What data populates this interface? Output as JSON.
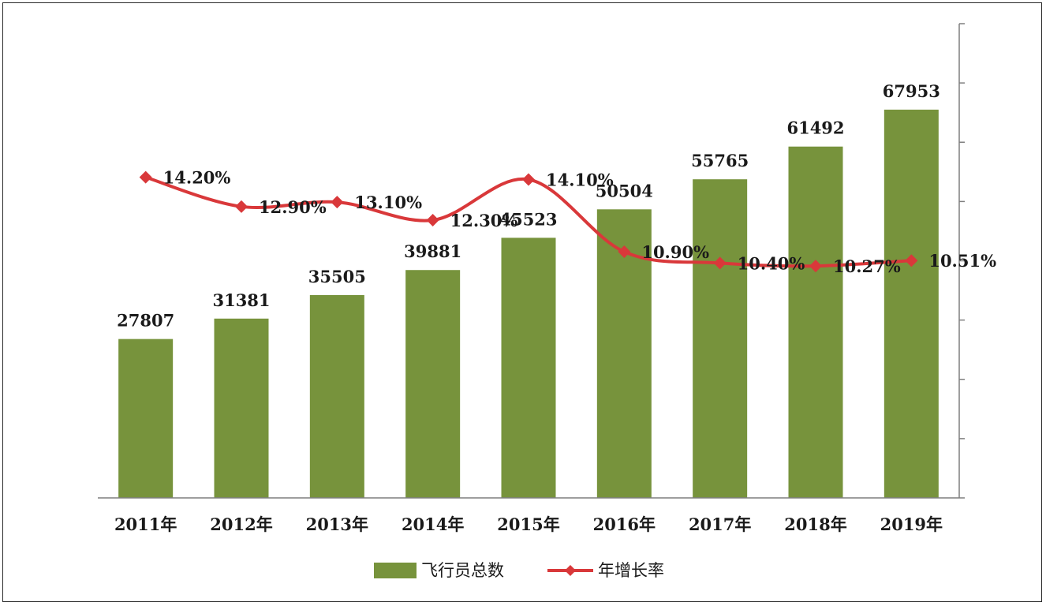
{
  "chart_data": {
    "type": "bar",
    "categories": [
      "2011年",
      "2012年",
      "2013年",
      "2014年",
      "2015年",
      "2016年",
      "2017年",
      "2018年",
      "2019年"
    ],
    "series": [
      {
        "name": "飞行员总数",
        "type": "bar",
        "axis": "left",
        "values": [
          27807,
          31381,
          35505,
          39881,
          45523,
          50504,
          55765,
          61492,
          67953
        ],
        "labels": [
          "27807",
          "31381",
          "35505",
          "39881",
          "45523",
          "50504",
          "55765",
          "61492",
          "67953"
        ],
        "color": "#77933c"
      },
      {
        "name": "年增长率",
        "type": "line",
        "axis": "right",
        "values": [
          14.2,
          12.9,
          13.1,
          12.3,
          14.1,
          10.9,
          10.4,
          10.27,
          10.51
        ],
        "labels": [
          "14.20%",
          "12.90%",
          "13.10%",
          "12.30%",
          "14.10%",
          "10.90%",
          "10.40%",
          "10.27%",
          "10.51%"
        ],
        "color": "#d9383a"
      }
    ],
    "ylim": [
      0,
      83000
    ],
    "y2lim": [
      0,
      21
    ],
    "y2_ticks": 8,
    "grid": false,
    "legend": "bottom"
  }
}
